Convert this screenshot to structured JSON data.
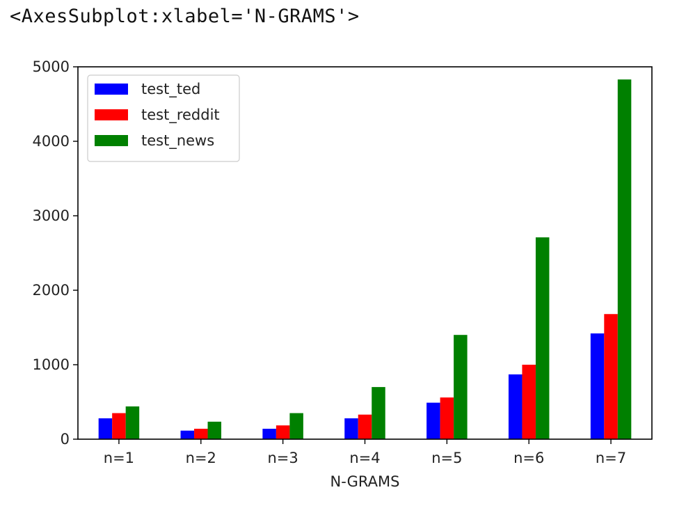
{
  "output": {
    "repr_text": "<AxesSubplot:xlabel='N-GRAMS'>"
  },
  "chart_data": {
    "type": "bar",
    "xlabel": "N-GRAMS",
    "ylabel": "",
    "title": "",
    "ylim": [
      0,
      5000
    ],
    "yticks": [
      0,
      1000,
      2000,
      3000,
      4000,
      5000
    ],
    "categories": [
      "n=1",
      "n=2",
      "n=3",
      "n=4",
      "n=5",
      "n=6",
      "n=7"
    ],
    "series": [
      {
        "name": "test_ted",
        "color": "#0000ff",
        "values": [
          280,
          115,
          140,
          280,
          490,
          870,
          1420
        ]
      },
      {
        "name": "test_reddit",
        "color": "#ff0000",
        "values": [
          350,
          140,
          185,
          330,
          560,
          1000,
          1680
        ]
      },
      {
        "name": "test_news",
        "color": "#008000",
        "values": [
          440,
          235,
          350,
          700,
          1400,
          2710,
          4830
        ]
      }
    ],
    "legend_position": "upper-left",
    "grid": false
  }
}
